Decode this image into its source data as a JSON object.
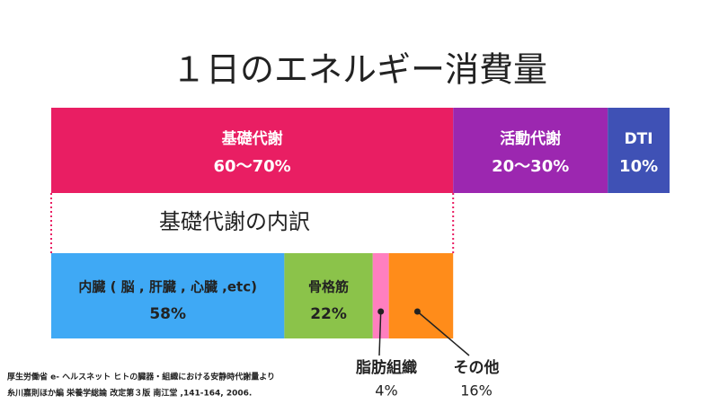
{
  "title": "１日のエネルギー消費量",
  "chart_data": [
    {
      "type": "stacked-bar",
      "categories": [
        "基礎代謝",
        "活動代謝",
        "DTI"
      ],
      "ranges": [
        [
          60,
          70
        ],
        [
          20,
          30
        ],
        [
          10,
          10
        ]
      ],
      "value_labels": [
        "60〜70%",
        "20〜30%",
        "10%"
      ],
      "colors": [
        "#e91e63",
        "#9c27b0",
        "#3f51b5"
      ],
      "xlim": [
        0,
        100
      ]
    },
    {
      "type": "stacked-bar",
      "title": "基礎代謝の内訳",
      "categories": [
        "内臓 ( 脳 , 肝臓 , 心臓 ,etc)",
        "骨格筋",
        "脂肪組織",
        "その他"
      ],
      "values": [
        58,
        22,
        4,
        16
      ],
      "value_labels": [
        "58%",
        "22%",
        "4%",
        "16%"
      ],
      "colors": [
        "#3fa9f5",
        "#8bc34a",
        "#ff7fbf",
        "#ff8c1a"
      ],
      "xlim": [
        0,
        100
      ]
    }
  ],
  "source": [
    "厚生労働省 e- ヘルスネット ヒトの臓器・組織における安静時代謝量より",
    "糸川嘉則ほか編 栄養学総論 改定第３版 南江堂 ,141-164, 2006."
  ]
}
